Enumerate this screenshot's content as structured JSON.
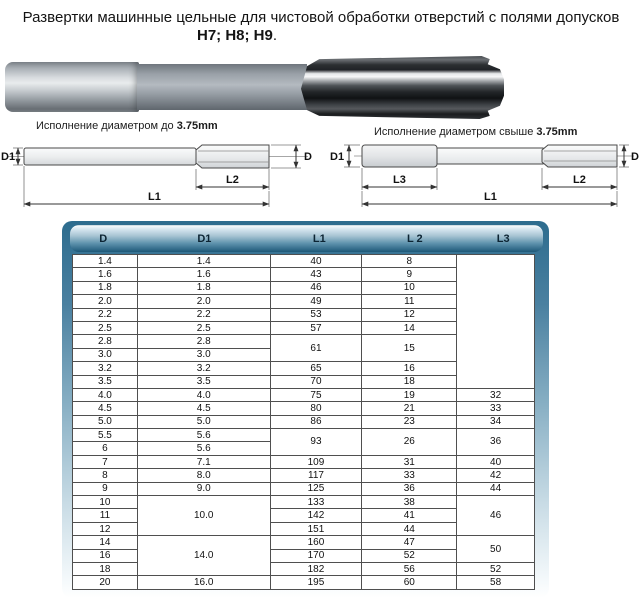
{
  "title": {
    "line1": "Развертки машинные цельные для чистовой обработки отверстий с полями допусков",
    "line2": "H7; H8; H9",
    "line2_period": "."
  },
  "diagrams": {
    "left": {
      "caption": "Исполнение диаметром до ",
      "caption_bold": "3.75mm",
      "labels": {
        "d1": "D1",
        "d": "D",
        "l2": "L2",
        "l1": "L1"
      }
    },
    "right": {
      "caption": "Исполнение диаметром свыше ",
      "caption_bold": "3.75mm",
      "labels": {
        "d1": "D1",
        "d": "D",
        "l3": "L3",
        "l2": "L2",
        "l1": "L1"
      }
    }
  },
  "table": {
    "headers": [
      "D",
      "D1",
      "L1",
      "L 2",
      "L3"
    ],
    "rows": [
      [
        {
          "t": "1.4"
        },
        {
          "t": "1.4"
        },
        {
          "t": "40"
        },
        {
          "t": "8"
        },
        {
          "t": "",
          "rs": 10
        }
      ],
      [
        {
          "t": "1.6"
        },
        {
          "t": "1.6"
        },
        {
          "t": "43"
        },
        {
          "t": "9"
        }
      ],
      [
        {
          "t": "1.8"
        },
        {
          "t": "1.8"
        },
        {
          "t": "46"
        },
        {
          "t": "10"
        }
      ],
      [
        {
          "t": "2.0"
        },
        {
          "t": "2.0"
        },
        {
          "t": "49"
        },
        {
          "t": "11"
        }
      ],
      [
        {
          "t": "2.2"
        },
        {
          "t": "2.2"
        },
        {
          "t": "53"
        },
        {
          "t": "12"
        }
      ],
      [
        {
          "t": "2.5"
        },
        {
          "t": "2.5"
        },
        {
          "t": "57"
        },
        {
          "t": "14"
        }
      ],
      [
        {
          "t": "2.8"
        },
        {
          "t": "2.8"
        },
        {
          "t": "61",
          "rs": 2
        },
        {
          "t": "15",
          "rs": 2
        }
      ],
      [
        {
          "t": "3.0"
        },
        {
          "t": "3.0"
        }
      ],
      [
        {
          "t": "3.2"
        },
        {
          "t": "3.2"
        },
        {
          "t": "65"
        },
        {
          "t": "16"
        }
      ],
      [
        {
          "t": "3.5"
        },
        {
          "t": "3.5"
        },
        {
          "t": "70"
        },
        {
          "t": "18"
        }
      ],
      [
        {
          "t": "4.0"
        },
        {
          "t": "4.0"
        },
        {
          "t": "75"
        },
        {
          "t": "19"
        },
        {
          "t": "32"
        }
      ],
      [
        {
          "t": "4.5"
        },
        {
          "t": "4.5"
        },
        {
          "t": "80"
        },
        {
          "t": "21"
        },
        {
          "t": "33"
        }
      ],
      [
        {
          "t": "5.0"
        },
        {
          "t": "5.0"
        },
        {
          "t": "86"
        },
        {
          "t": "23"
        },
        {
          "t": "34"
        }
      ],
      [
        {
          "t": "5.5"
        },
        {
          "t": "5.6"
        },
        {
          "t": "93",
          "rs": 2
        },
        {
          "t": "26",
          "rs": 2
        },
        {
          "t": "36",
          "rs": 2
        }
      ],
      [
        {
          "t": "6"
        },
        {
          "t": "5.6"
        }
      ],
      [
        {
          "t": "7"
        },
        {
          "t": "7.1"
        },
        {
          "t": "109"
        },
        {
          "t": "31"
        },
        {
          "t": "40"
        }
      ],
      [
        {
          "t": "8"
        },
        {
          "t": "8.0"
        },
        {
          "t": "117"
        },
        {
          "t": "33"
        },
        {
          "t": "42"
        }
      ],
      [
        {
          "t": "9"
        },
        {
          "t": "9.0"
        },
        {
          "t": "125"
        },
        {
          "t": "36"
        },
        {
          "t": "44"
        }
      ],
      [
        {
          "t": "10"
        },
        {
          "t": "10.0",
          "rs": 3
        },
        {
          "t": "133"
        },
        {
          "t": "38"
        },
        {
          "t": "46",
          "rs": 3
        }
      ],
      [
        {
          "t": "11"
        },
        {
          "t": "142"
        },
        {
          "t": "41"
        }
      ],
      [
        {
          "t": "12"
        },
        {
          "t": "151"
        },
        {
          "t": "44"
        }
      ],
      [
        {
          "t": "14"
        },
        {
          "t": "14.0",
          "rs": 3
        },
        {
          "t": "160"
        },
        {
          "t": "47"
        },
        {
          "t": "50",
          "rs": 2
        }
      ],
      [
        {
          "t": "16"
        },
        {
          "t": "170"
        },
        {
          "t": "52"
        }
      ],
      [
        {
          "t": "18"
        },
        {
          "t": "182"
        },
        {
          "t": "56"
        },
        {
          "t": "52"
        }
      ],
      [
        {
          "t": "20"
        },
        {
          "t": "16.0"
        },
        {
          "t": "195"
        },
        {
          "t": "60"
        },
        {
          "t": "58"
        }
      ]
    ]
  },
  "colors": {
    "frame_top": "#2d6c8e",
    "frame_bottom": "#f6fafc",
    "header_light": "#d3e4ee",
    "header_dark": "#1d5878",
    "table_border": "#4f4f4f"
  }
}
